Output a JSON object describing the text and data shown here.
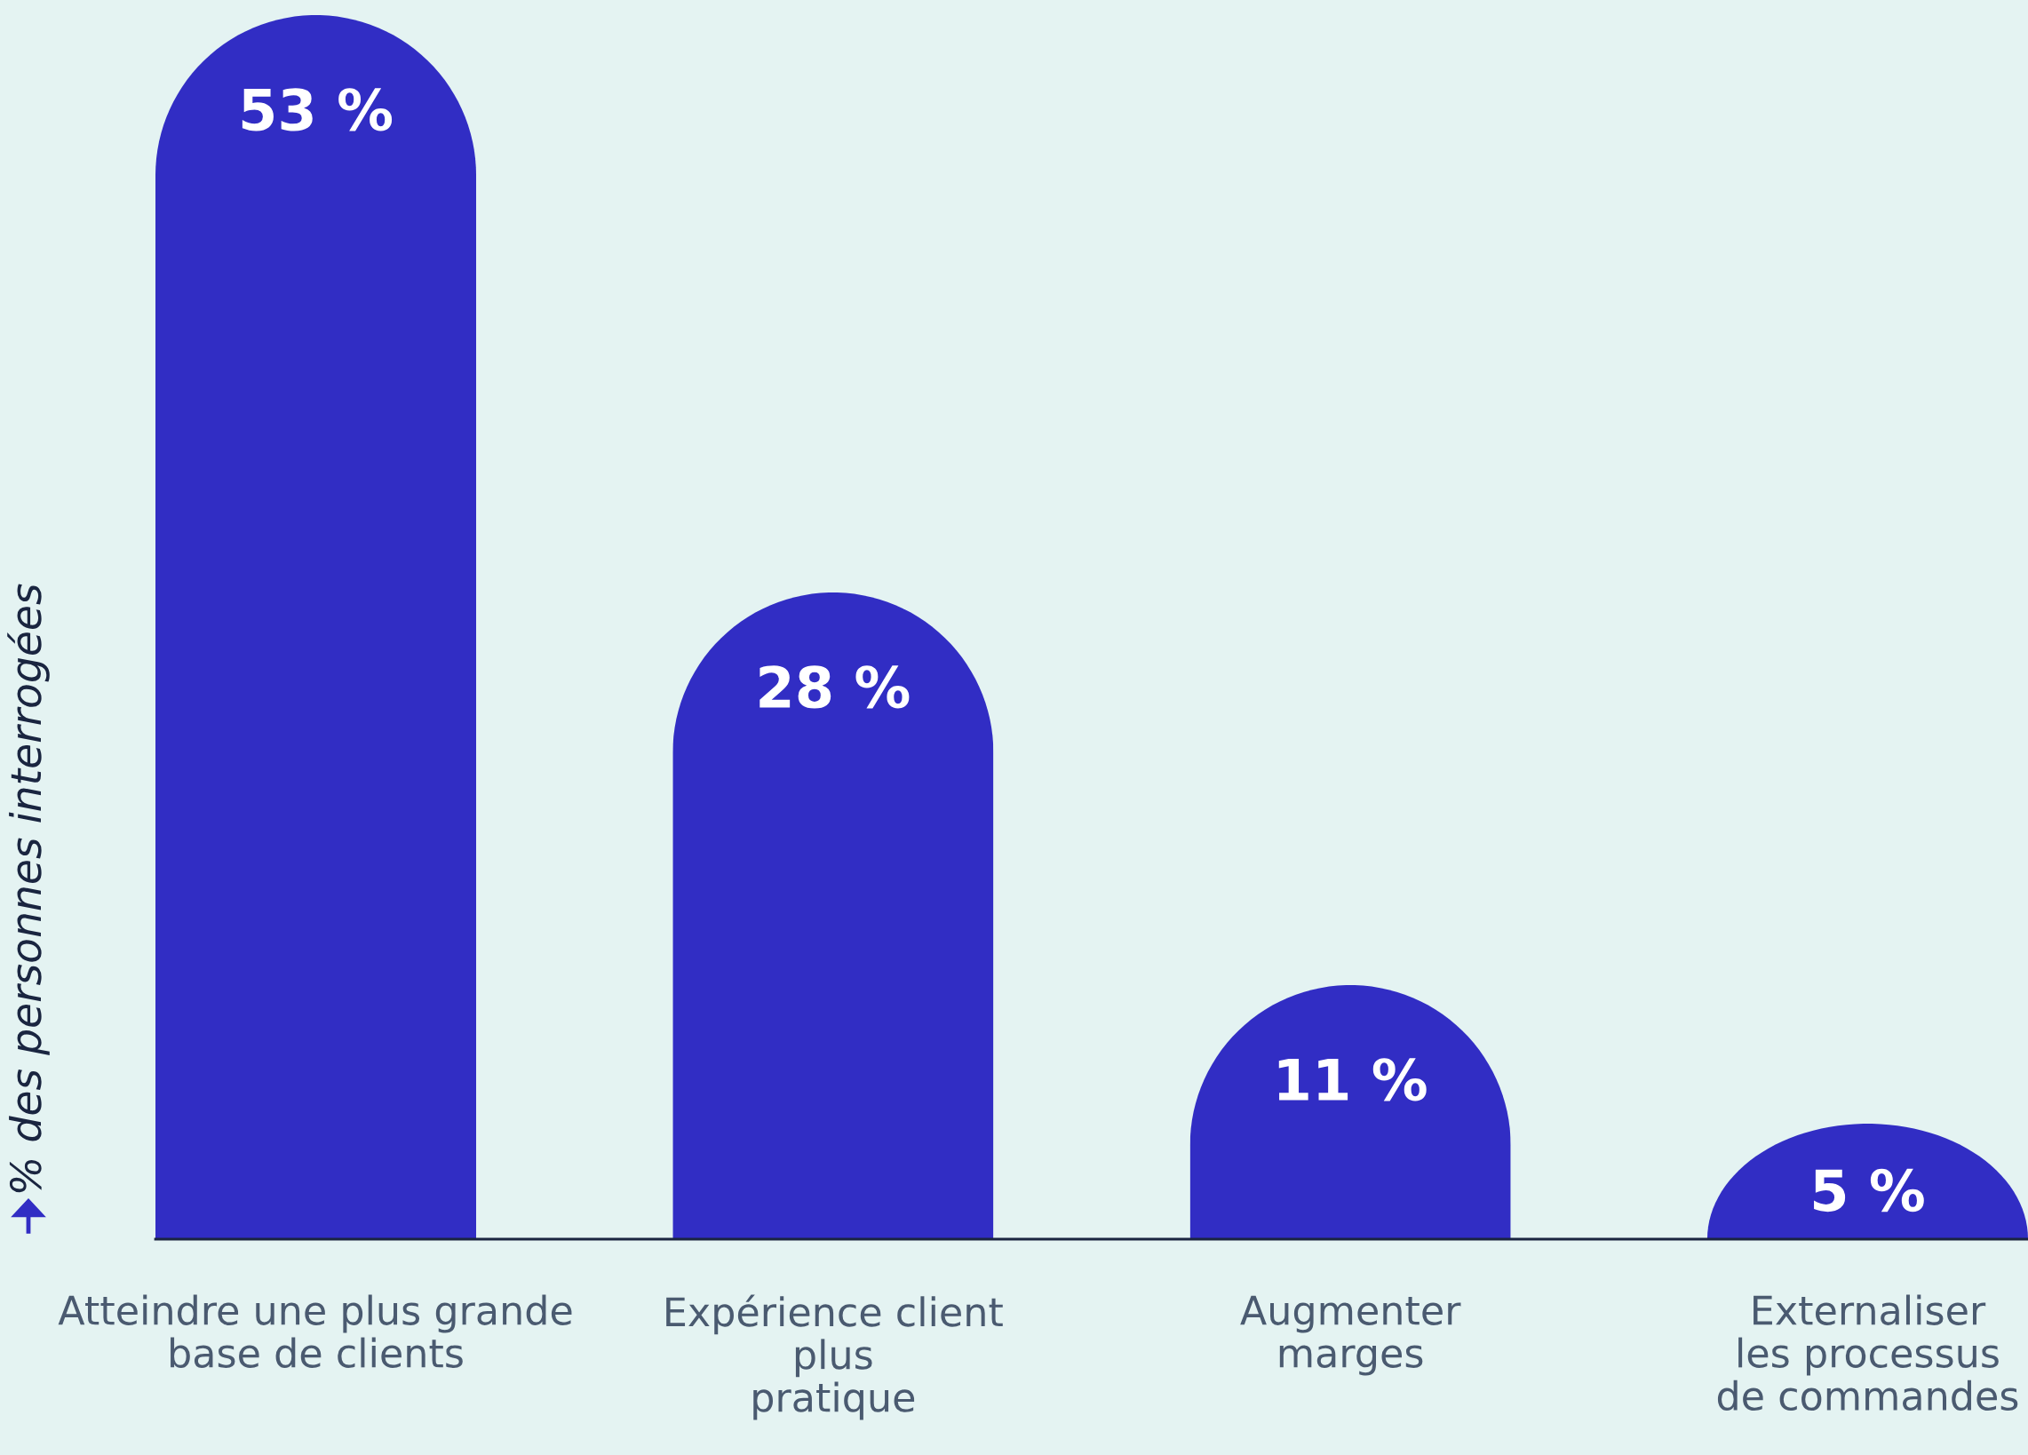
{
  "chart_data": {
    "type": "bar",
    "ylabel": "% des personnes interrogées",
    "categories": [
      "Atteindre une plus grande\nbase de clients",
      "Expérience client\nplus\npratique",
      "Augmenter\nmarges",
      "Externaliser\nles processus\nde commandes"
    ],
    "values": [
      53,
      28,
      11,
      5
    ],
    "value_labels": [
      "53 %",
      "28 %",
      "11 %",
      "5 %"
    ],
    "color": "#312dc4",
    "tick_labels": "x",
    "grid": false
  }
}
